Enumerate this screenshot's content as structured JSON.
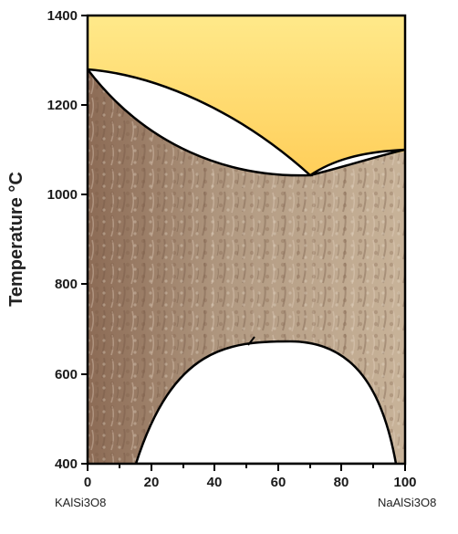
{
  "diagram": {
    "y_axis_title": "Temperature °C",
    "y_ticks": [
      "400",
      "600",
      "800",
      "1000",
      "1200",
      "1400"
    ],
    "x_ticks": [
      "0",
      "20",
      "40",
      "60",
      "80",
      "100"
    ],
    "x_left_endmember": "KAlSi3O8",
    "x_right_endmember": "NaAlSi3O8",
    "x_range": [
      0,
      100
    ],
    "y_range": [
      400,
      1400
    ],
    "colors": {
      "melt_top": "#ffe98a",
      "melt_bottom": "#ff9a0a",
      "feldspar_dark": "#8f6f58",
      "feldspar_light": "#c9b399",
      "boundary": "#000000",
      "two_phase": "#ffffff"
    }
  }
}
